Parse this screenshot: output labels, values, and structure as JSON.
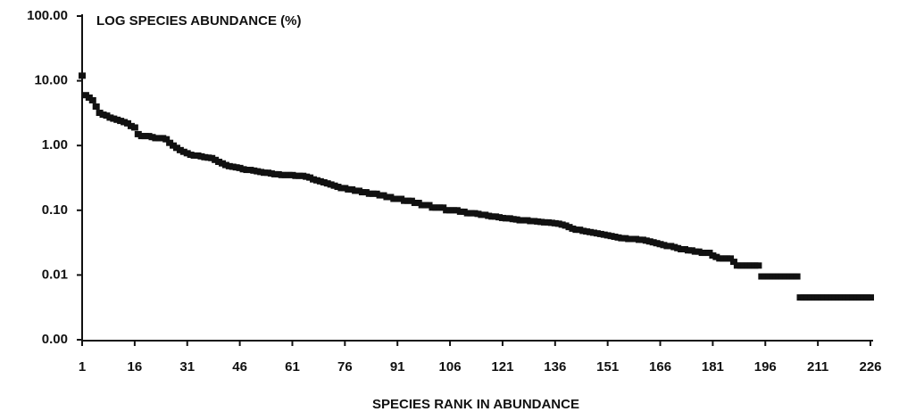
{
  "chart_data": {
    "type": "scatter",
    "title": "LOG SPECIES ABUNDANCE (%)",
    "x_label": "SPECIES RANK IN ABUNDANCE",
    "y_scale": "log",
    "color": "#111111",
    "xlim": [
      1,
      226
    ],
    "xticks": [
      1,
      16,
      31,
      46,
      61,
      76,
      91,
      106,
      121,
      136,
      151,
      166,
      181,
      196,
      211,
      226
    ],
    "ylim": [
      0.001,
      100
    ],
    "yticks": [
      {
        "value": 0.001,
        "label": "0.00"
      },
      {
        "value": 0.01,
        "label": "0.01"
      },
      {
        "value": 0.1,
        "label": "0.10"
      },
      {
        "value": 1,
        "label": "1.00"
      },
      {
        "value": 10,
        "label": "10.00"
      },
      {
        "value": 100,
        "label": "100.00"
      }
    ],
    "x": [
      1,
      2,
      3,
      4,
      5,
      6,
      7,
      8,
      9,
      10,
      11,
      12,
      13,
      14,
      15,
      16,
      17,
      18,
      19,
      20,
      21,
      22,
      23,
      24,
      25,
      26,
      27,
      28,
      29,
      30,
      31,
      32,
      33,
      34,
      35,
      36,
      37,
      38,
      39,
      40,
      41,
      42,
      43,
      44,
      45,
      46,
      47,
      48,
      49,
      50,
      51,
      52,
      53,
      54,
      55,
      56,
      57,
      58,
      59,
      60,
      61,
      62,
      63,
      64,
      65,
      66,
      67,
      68,
      69,
      70,
      71,
      72,
      73,
      74,
      75,
      76,
      77,
      78,
      79,
      80,
      81,
      82,
      83,
      84,
      85,
      86,
      87,
      88,
      89,
      90,
      91,
      92,
      93,
      94,
      95,
      96,
      97,
      98,
      99,
      100,
      101,
      102,
      103,
      104,
      105,
      106,
      107,
      108,
      109,
      110,
      111,
      112,
      113,
      114,
      115,
      116,
      117,
      118,
      119,
      120,
      121,
      122,
      123,
      124,
      125,
      126,
      127,
      128,
      129,
      130,
      131,
      132,
      133,
      134,
      135,
      136,
      137,
      138,
      139,
      140,
      141,
      142,
      143,
      144,
      145,
      146,
      147,
      148,
      149,
      150,
      151,
      152,
      153,
      154,
      155,
      156,
      157,
      158,
      159,
      160,
      161,
      162,
      163,
      164,
      165,
      166,
      167,
      168,
      169,
      170,
      171,
      172,
      173,
      174,
      175,
      176,
      177,
      178,
      179,
      180,
      181,
      182,
      183,
      184,
      185,
      186,
      187,
      188,
      189,
      190,
      191,
      192,
      193,
      194,
      195,
      196,
      197,
      198,
      199,
      200,
      201,
      202,
      203,
      204,
      205,
      206,
      207,
      208,
      209,
      210,
      211,
      212,
      213,
      214,
      215,
      216,
      217,
      218,
      219,
      220,
      221,
      222,
      223,
      224,
      225,
      226
    ],
    "values": [
      12,
      6.0,
      5.5,
      5.0,
      4.0,
      3.2,
      3.0,
      2.9,
      2.7,
      2.6,
      2.5,
      2.4,
      2.3,
      2.2,
      2.0,
      1.9,
      1.5,
      1.4,
      1.4,
      1.4,
      1.35,
      1.3,
      1.3,
      1.3,
      1.25,
      1.1,
      1.0,
      0.92,
      0.85,
      0.8,
      0.76,
      0.72,
      0.7,
      0.7,
      0.68,
      0.66,
      0.65,
      0.64,
      0.6,
      0.56,
      0.53,
      0.5,
      0.48,
      0.47,
      0.46,
      0.45,
      0.43,
      0.42,
      0.42,
      0.41,
      0.4,
      0.39,
      0.38,
      0.38,
      0.37,
      0.36,
      0.36,
      0.35,
      0.35,
      0.35,
      0.35,
      0.34,
      0.34,
      0.34,
      0.33,
      0.32,
      0.3,
      0.29,
      0.28,
      0.27,
      0.26,
      0.25,
      0.24,
      0.23,
      0.22,
      0.22,
      0.21,
      0.21,
      0.2,
      0.2,
      0.19,
      0.19,
      0.18,
      0.18,
      0.18,
      0.17,
      0.17,
      0.16,
      0.16,
      0.15,
      0.15,
      0.15,
      0.14,
      0.14,
      0.14,
      0.13,
      0.13,
      0.12,
      0.12,
      0.12,
      0.11,
      0.11,
      0.11,
      0.11,
      0.1,
      0.1,
      0.1,
      0.1,
      0.095,
      0.095,
      0.09,
      0.09,
      0.09,
      0.088,
      0.085,
      0.085,
      0.082,
      0.08,
      0.08,
      0.078,
      0.076,
      0.075,
      0.075,
      0.073,
      0.072,
      0.07,
      0.07,
      0.07,
      0.068,
      0.068,
      0.067,
      0.066,
      0.065,
      0.065,
      0.064,
      0.063,
      0.062,
      0.06,
      0.058,
      0.055,
      0.052,
      0.05,
      0.05,
      0.048,
      0.047,
      0.046,
      0.045,
      0.044,
      0.043,
      0.042,
      0.041,
      0.04,
      0.039,
      0.038,
      0.037,
      0.037,
      0.036,
      0.036,
      0.036,
      0.035,
      0.035,
      0.034,
      0.033,
      0.032,
      0.031,
      0.03,
      0.029,
      0.028,
      0.028,
      0.027,
      0.026,
      0.025,
      0.025,
      0.024,
      0.024,
      0.023,
      0.023,
      0.022,
      0.022,
      0.022,
      0.02,
      0.019,
      0.018,
      0.018,
      0.018,
      0.018,
      0.016,
      0.014,
      0.014,
      0.014,
      0.014,
      0.014,
      0.014,
      0.014,
      0.0095,
      0.0095,
      0.0095,
      0.0095,
      0.0095,
      0.0095,
      0.0095,
      0.0095,
      0.0095,
      0.0095,
      0.0095,
      0.0045,
      0.0045,
      0.0045,
      0.0045,
      0.0045,
      0.0045,
      0.0045,
      0.0045,
      0.0045,
      0.0045,
      0.0045,
      0.0045,
      0.0045,
      0.0045,
      0.0045,
      0.0045,
      0.0045,
      0.0045,
      0.0045,
      0.0045,
      0.0045
    ]
  }
}
